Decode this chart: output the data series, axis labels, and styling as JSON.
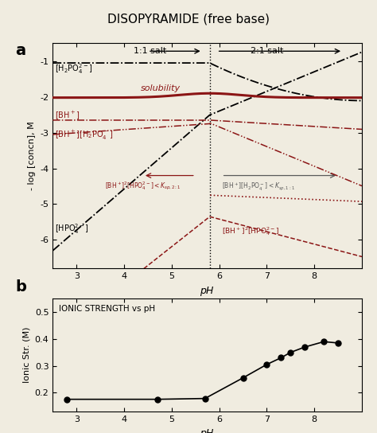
{
  "title": "DISOPYRAMIDE (free base)",
  "xlabel": "pH",
  "ylabel_a": "- log [concn], M",
  "ylabel_b": "Ionic Str. (M)",
  "xlim": [
    2.5,
    9.0
  ],
  "ylim_a": [
    -6.8,
    -0.5
  ],
  "ylim_b": [
    0.13,
    0.55
  ],
  "yticks_a": [
    -6,
    -5,
    -4,
    -3,
    -2,
    -1
  ],
  "yticks_b": [
    0.2,
    0.3,
    0.4,
    0.5
  ],
  "xticks": [
    3,
    4,
    5,
    6,
    7,
    8
  ],
  "vertical_line_x": 5.8,
  "bg_color": "#f0ece0",
  "dark_red": "#8B1515",
  "black": "#000000",
  "ionic_pH": [
    2.8,
    4.7,
    5.7,
    6.5,
    7.0,
    7.3,
    7.5,
    7.8,
    8.2,
    8.5
  ],
  "ionic_IS": [
    0.175,
    0.175,
    0.178,
    0.255,
    0.305,
    0.33,
    0.35,
    0.37,
    0.39,
    0.385
  ]
}
